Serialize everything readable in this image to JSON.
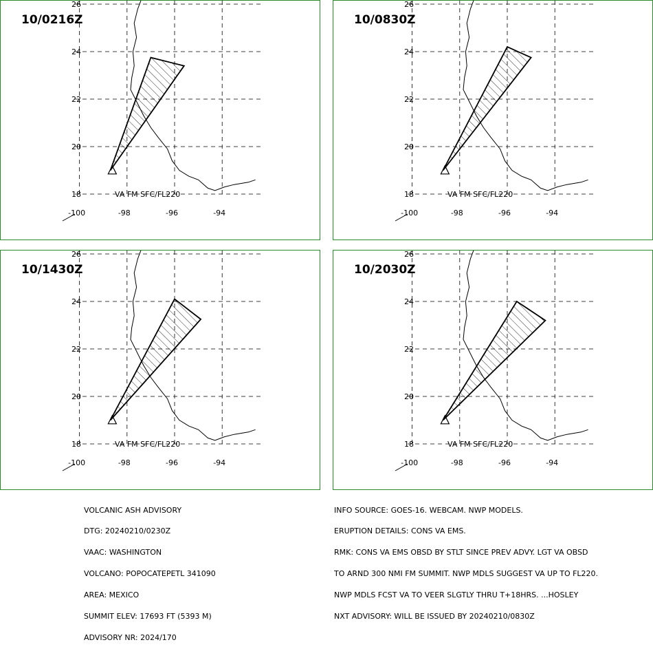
{
  "panels": [
    {
      "time": "10/0216Z",
      "polygon": [
        [
          -98.7,
          19.0
        ],
        [
          -97.0,
          23.75
        ],
        [
          -95.6,
          23.4
        ],
        [
          -98.7,
          19.0
        ]
      ]
    },
    {
      "time": "10/0830Z",
      "polygon": [
        [
          -98.7,
          19.0
        ],
        [
          -96.0,
          24.2
        ],
        [
          -95.0,
          23.75
        ],
        [
          -98.7,
          19.0
        ]
      ]
    },
    {
      "time": "10/1430Z",
      "polygon": [
        [
          -98.7,
          19.0
        ],
        [
          -96.0,
          24.1
        ],
        [
          -94.9,
          23.25
        ],
        [
          -98.7,
          19.0
        ]
      ]
    },
    {
      "time": "10/2030Z",
      "polygon": [
        [
          -98.7,
          19.0
        ],
        [
          -95.6,
          24.0
        ],
        [
          -94.4,
          23.2
        ],
        [
          -98.7,
          19.0
        ]
      ]
    }
  ],
  "map": {
    "lon_ticks": [
      "-100",
      "-98",
      "-96",
      "-94"
    ],
    "lat_ticks": [
      "18",
      "20",
      "22",
      "24",
      "26"
    ],
    "va_label": "VA FM SFC/FL220",
    "volcano": [
      -98.62,
      19.02
    ],
    "colors": {
      "border": "#2a8a2a",
      "lines": "#000000"
    }
  },
  "advisory_left": [
    "VOLCANIC ASH ADVISORY",
    "DTG: 20240210/0230Z",
    "VAAC: WASHINGTON",
    "VOLCANO: POPOCATEPETL 341090",
    "AREA: MEXICO",
    "SUMMIT ELEV: 17693 FT (5393 M)",
    "ADVISORY NR: 2024/170"
  ],
  "advisory_right": [
    "INFO SOURCE: GOES-16. WEBCAM. NWP MODELS.",
    "ERUPTION DETAILS: CONS VA EMS.",
    "RMK: CONS VA EMS OBSD BY STLT SINCE PREV ADVY. LGT VA OBSD",
    "TO ARND 300 NMI FM SUMMIT. NWP MDLS SUGGEST VA UP TO FL220.",
    "NWP MDLS FCST VA TO VEER SLGTLY THRU T+18HRS. ...HOSLEY",
    "NXT ADVISORY: WILL BE ISSUED BY 20240210/0830Z"
  ]
}
